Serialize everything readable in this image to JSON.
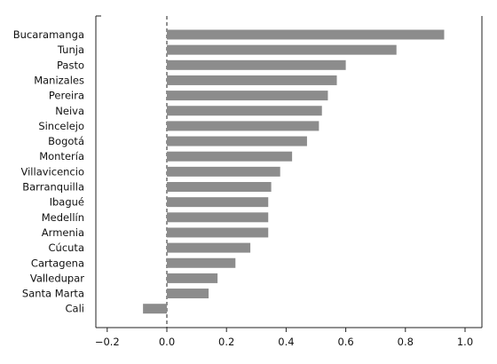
{
  "chart_data": {
    "type": "bar",
    "orientation": "horizontal",
    "title": "",
    "xlabel": "",
    "ylabel": "",
    "categories": [
      "Bucaramanga",
      "Tunja",
      "Pasto",
      "Manizales",
      "Pereira",
      "Neiva",
      "Sincelejo",
      "Bogotá",
      "Montería",
      "Villavicencio",
      "Barranquilla",
      "Ibagué",
      "Medellín",
      "Armenia",
      "Cúcuta",
      "Cartagena",
      "Valledupar",
      "Santa Marta",
      "Cali"
    ],
    "values": [
      0.93,
      0.77,
      0.6,
      0.57,
      0.54,
      0.52,
      0.51,
      0.47,
      0.42,
      0.38,
      0.35,
      0.34,
      0.34,
      0.34,
      0.28,
      0.23,
      0.17,
      0.14,
      -0.08
    ],
    "xlim": [
      -0.25,
      1.05
    ],
    "xticks": [
      -0.2,
      0.0,
      0.2,
      0.4,
      0.6,
      0.8,
      1.0
    ],
    "xtick_labels": [
      "−0.2",
      "0.0",
      "0.2",
      "0.4",
      "0.6",
      "0.8",
      "1.0"
    ],
    "bar_color": "#8c8c8c",
    "grid": false,
    "legend": "none"
  }
}
